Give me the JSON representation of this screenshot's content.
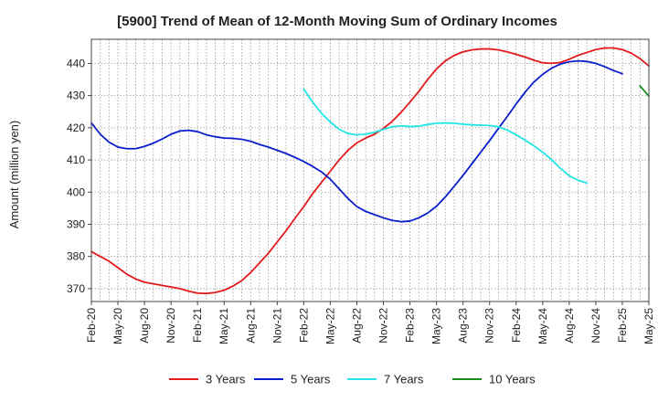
{
  "chart_data": {
    "type": "line",
    "title": "[5900]  Trend of Mean of 12-Month Moving Sum of Ordinary Incomes",
    "xlabel": "",
    "ylabel": "Amount (million yen)",
    "ylim": [
      366,
      447.5
    ],
    "yticks": [
      370,
      380,
      390,
      400,
      410,
      420,
      430,
      440
    ],
    "x_tick_labels": [
      "Feb-20",
      "May-20",
      "Aug-20",
      "Nov-20",
      "Feb-21",
      "May-21",
      "Aug-21",
      "Nov-21",
      "Feb-22",
      "May-22",
      "Aug-22",
      "Nov-22",
      "Feb-23",
      "May-23",
      "Aug-23",
      "Nov-23",
      "Feb-24",
      "May-24",
      "Aug-24",
      "Nov-24",
      "Feb-25",
      "May-25"
    ],
    "x_months_start": "2020-02",
    "x_months_count": 64,
    "grid": true,
    "legend_position": "bottom",
    "series": [
      {
        "name": "3 Years",
        "color": "#e31a1c",
        "start_index": 0,
        "values": [
          381.5,
          380,
          378.5,
          376.5,
          374.5,
          373,
          372,
          371.5,
          371,
          370.5,
          370,
          369.2,
          368.6,
          368.5,
          368.8,
          369.5,
          370.8,
          372.5,
          375,
          378,
          381,
          384.5,
          388,
          391.8,
          395.5,
          399.5,
          403,
          406.5,
          410,
          413,
          415.3,
          416.8,
          418,
          419.8,
          422,
          424.8,
          428,
          431.3,
          435,
          438.3,
          440.8,
          442.5,
          443.6,
          444.2,
          444.5,
          444.5,
          444.2,
          443.6,
          442.8,
          442,
          441,
          440.2,
          440,
          440.3,
          441.3,
          442.5,
          443.4,
          444.3,
          444.8,
          444.8,
          444.3,
          443.2,
          441.5,
          439.2
        ]
      },
      {
        "name": "5 Years",
        "color": "#0a1fcc",
        "start_index": 0,
        "values": [
          421.5,
          418,
          415.5,
          414,
          413.5,
          413.5,
          414.2,
          415.2,
          416.5,
          418,
          419,
          419.2,
          418.8,
          417.8,
          417.2,
          416.8,
          416.7,
          416.4,
          415.8,
          414.8,
          414,
          413,
          412,
          410.8,
          409.5,
          408,
          406.3,
          404,
          401,
          398,
          395.5,
          394,
          393,
          392,
          391.2,
          390.8,
          391,
          392,
          393.5,
          395.6,
          398.5,
          401.8,
          405.2,
          408.8,
          412.4,
          416,
          419.8,
          423.5,
          427.4,
          431,
          434.2,
          436.6,
          438.5,
          439.8,
          440.5,
          440.8,
          440.6,
          440,
          439,
          437.8,
          436.8
        ]
      },
      {
        "name": "7 Years",
        "color": "#22e5e5",
        "start_index": 24,
        "values": [
          432,
          428,
          424.5,
          421.8,
          419.5,
          418.2,
          417.8,
          418,
          418.6,
          419.5,
          420.3,
          420.6,
          420.4,
          420.5,
          421,
          421.4,
          421.5,
          421.4,
          421.1,
          420.9,
          420.8,
          420.7,
          420.3,
          419.3,
          417.8,
          416.2,
          414.4,
          412.4,
          410.1,
          407.4,
          405.1,
          403.7,
          402.8
        ]
      },
      {
        "name": "10 Years",
        "color": "#1a8c1a",
        "start_index": 62,
        "values": [
          433,
          429.8
        ]
      }
    ]
  }
}
